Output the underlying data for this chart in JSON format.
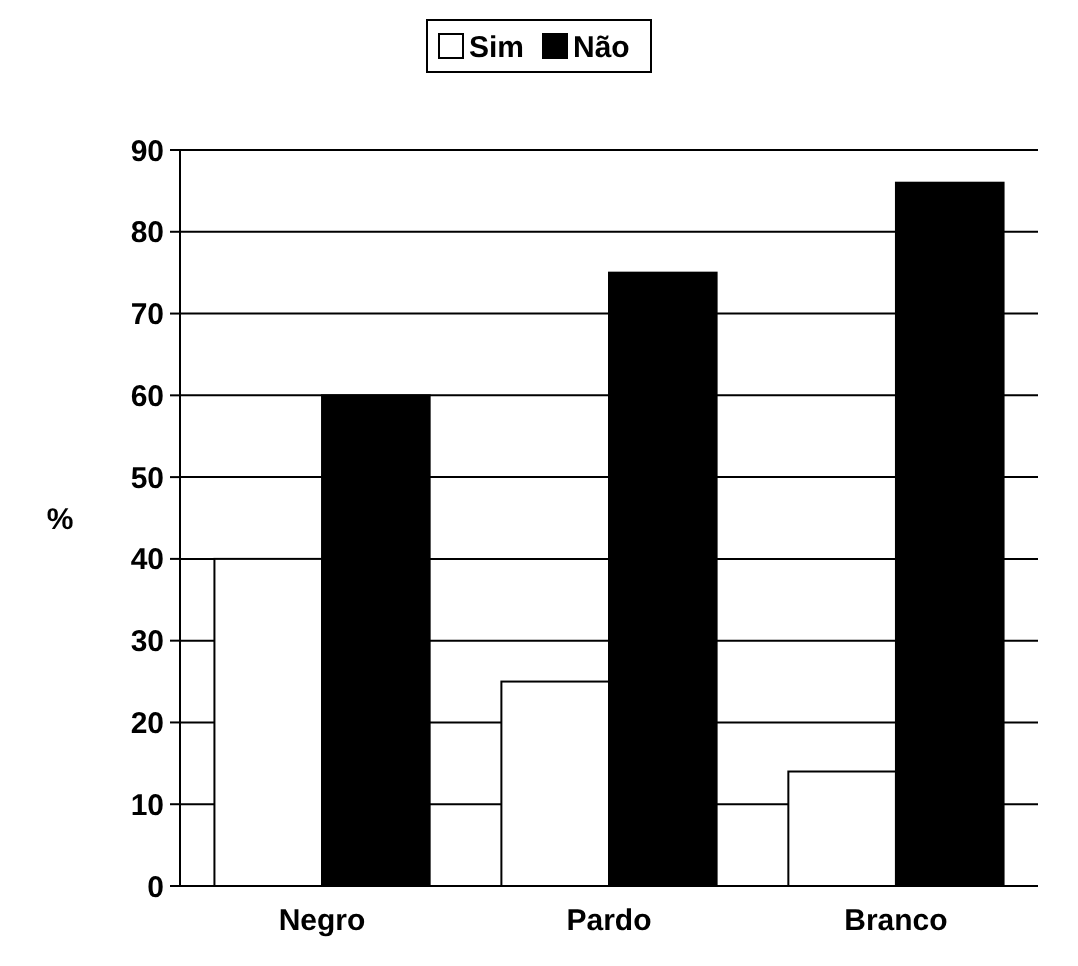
{
  "chart_data": {
    "type": "bar",
    "ylabel": "%",
    "categories": [
      "Negro",
      "Pardo",
      "Branco"
    ],
    "series": [
      {
        "name": "Sim",
        "color": "#ffffff",
        "values": [
          40,
          25,
          14
        ]
      },
      {
        "name": "Não",
        "color": "#000000",
        "values": [
          60,
          75,
          86
        ]
      }
    ],
    "ylim": [
      0,
      90
    ],
    "yticks": [
      0,
      10,
      20,
      30,
      40,
      50,
      60,
      70,
      80,
      90
    ],
    "grid": "y",
    "legend": "top"
  }
}
